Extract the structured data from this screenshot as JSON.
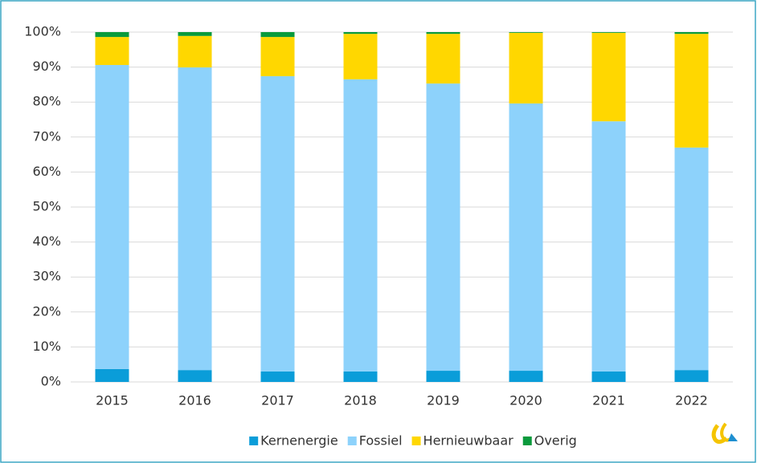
{
  "chart_data": {
    "type": "stacked_bar",
    "categories": [
      "2015",
      "2016",
      "2017",
      "2018",
      "2019",
      "2020",
      "2021",
      "2022"
    ],
    "series": [
      {
        "name": "Kernenergie",
        "color": "#0a9dd9",
        "values": [
          3.7,
          3.4,
          3.0,
          3.0,
          3.2,
          3.2,
          3.0,
          3.4
        ]
      },
      {
        "name": "Fossiel",
        "color": "#8dd2fb",
        "values": [
          86.9,
          86.5,
          84.4,
          83.5,
          82.1,
          76.4,
          71.5,
          63.6
        ]
      },
      {
        "name": "Hernieuwbaar",
        "color": "#ffd700",
        "values": [
          8.0,
          9.0,
          11.2,
          13.0,
          14.2,
          20.2,
          25.3,
          32.5
        ]
      },
      {
        "name": "Overig",
        "color": "#0a9a3c",
        "values": [
          1.4,
          1.1,
          1.4,
          0.5,
          0.5,
          0.2,
          0.2,
          0.5
        ]
      }
    ],
    "ylim": [
      0,
      100
    ],
    "yticks": [
      {
        "value": 0,
        "label": "0%"
      },
      {
        "value": 10,
        "label": "10%"
      },
      {
        "value": 20,
        "label": "20%"
      },
      {
        "value": 30,
        "label": "30%"
      },
      {
        "value": 40,
        "label": "40%"
      },
      {
        "value": 50,
        "label": "50%"
      },
      {
        "value": 60,
        "label": "60%"
      },
      {
        "value": 70,
        "label": "70%"
      },
      {
        "value": 80,
        "label": "80%"
      },
      {
        "value": 90,
        "label": "90%"
      },
      {
        "value": 100,
        "label": "100%"
      }
    ],
    "grid": true,
    "legend": "bottom"
  }
}
